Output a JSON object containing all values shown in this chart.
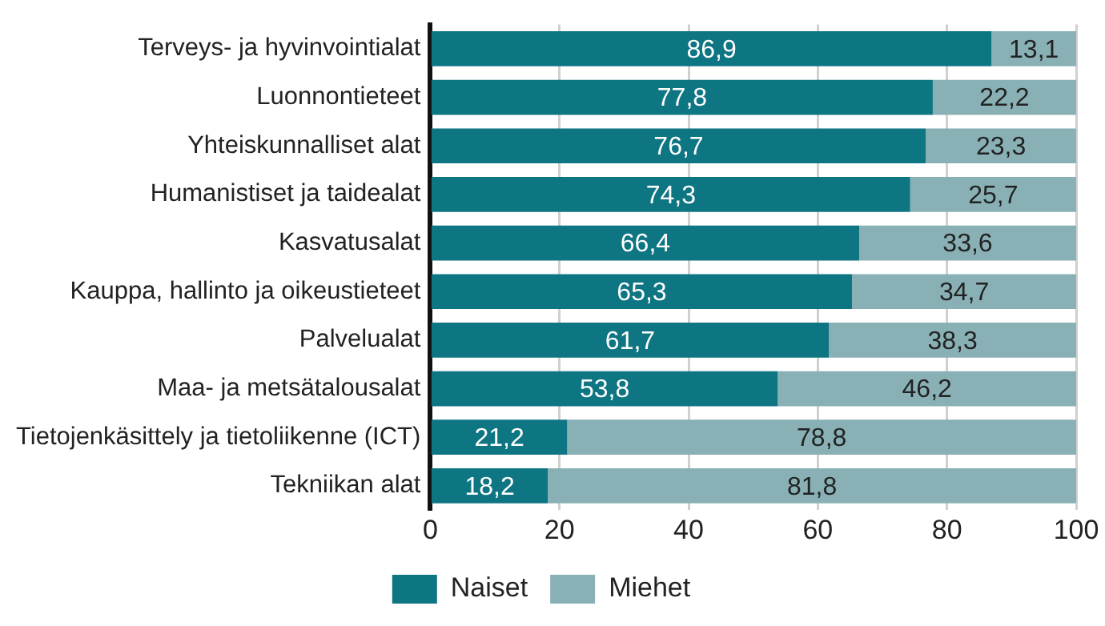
{
  "chart_data": {
    "type": "bar",
    "orientation": "horizontal",
    "stacked": true,
    "categories": [
      "Terveys- ja hyvinvointialat",
      "Luonnontieteet",
      "Yhteiskunnalliset alat",
      "Humanistiset ja taidealat",
      "Kasvatusalat",
      "Kauppa, hallinto ja oikeustieteet",
      "Palvelualat",
      "Maa- ja metsätalousalat",
      "Tietojenkäsittely ja tietoliikenne (ICT)",
      "Tekniikan alat"
    ],
    "series": [
      {
        "name": "Naiset",
        "color": "#0e7583",
        "values": [
          86.9,
          77.8,
          76.7,
          74.3,
          66.4,
          65.3,
          61.7,
          53.8,
          21.2,
          18.2
        ],
        "value_labels": [
          "86,9",
          "77,8",
          "76,7",
          "74,3",
          "66,4",
          "65,3",
          "61,7",
          "53,8",
          "21,2",
          "18,2"
        ]
      },
      {
        "name": "Miehet",
        "color": "#88b0b5",
        "values": [
          13.1,
          22.2,
          23.3,
          25.7,
          33.6,
          34.7,
          38.3,
          46.2,
          78.8,
          81.8
        ],
        "value_labels": [
          "13,1",
          "22,2",
          "23,3",
          "25,7",
          "33,6",
          "34,7",
          "38,3",
          "46,2",
          "78,8",
          "81,8"
        ]
      }
    ],
    "xlim": [
      0,
      100
    ],
    "xticks": [
      0,
      20,
      40,
      60,
      80,
      100
    ],
    "grid": "x",
    "legend": "bottom"
  }
}
